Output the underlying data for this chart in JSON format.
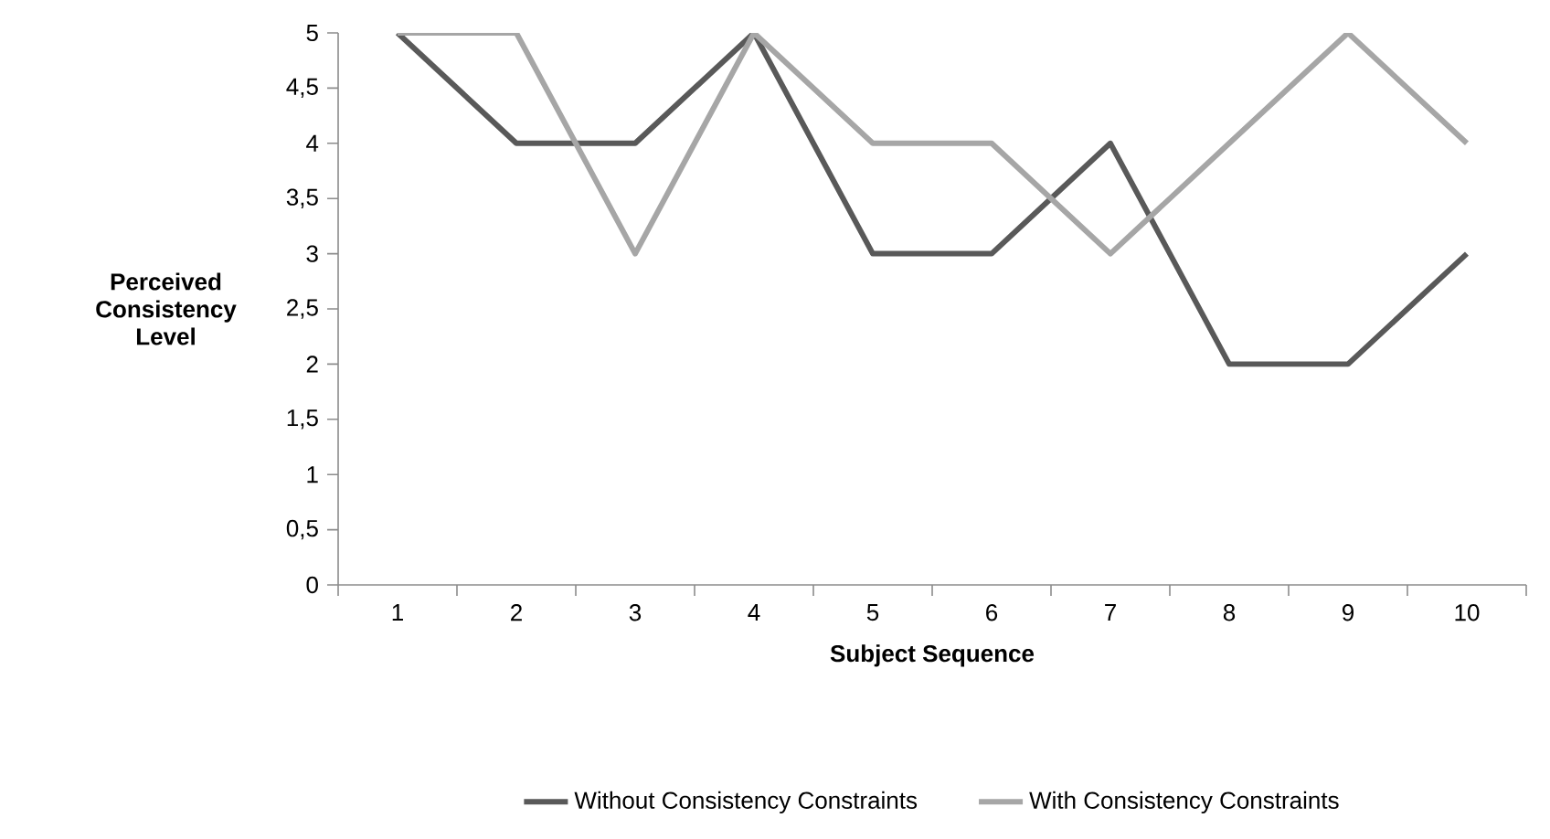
{
  "chart_data": {
    "type": "line",
    "xlabel": "Subject Sequence",
    "ylabel": "Perceived Consistency Level",
    "categories": [
      "1",
      "2",
      "3",
      "4",
      "5",
      "6",
      "7",
      "8",
      "9",
      "10"
    ],
    "series": [
      {
        "name": "Without Consistency Constraints",
        "color": "#595959",
        "values": [
          5,
          4,
          4,
          5,
          3,
          3,
          4,
          2,
          2,
          3
        ]
      },
      {
        "name": "With Consistency Constraints",
        "color": "#a6a6a6",
        "values": [
          5,
          5,
          3,
          5,
          4,
          4,
          3,
          4,
          5,
          4
        ]
      }
    ],
    "ylim": [
      0,
      5
    ],
    "yticks": [
      0,
      {
        "value": 0.5,
        "label": "0,5"
      },
      1,
      {
        "value": 1.5,
        "label": "1,5"
      },
      2,
      {
        "value": 2.5,
        "label": "2,5"
      },
      3,
      {
        "value": 3.5,
        "label": "3,5"
      },
      4,
      {
        "value": 4.5,
        "label": "4,5"
      },
      5
    ],
    "legend": "bottom",
    "marker": "none",
    "line_style": "solid"
  }
}
